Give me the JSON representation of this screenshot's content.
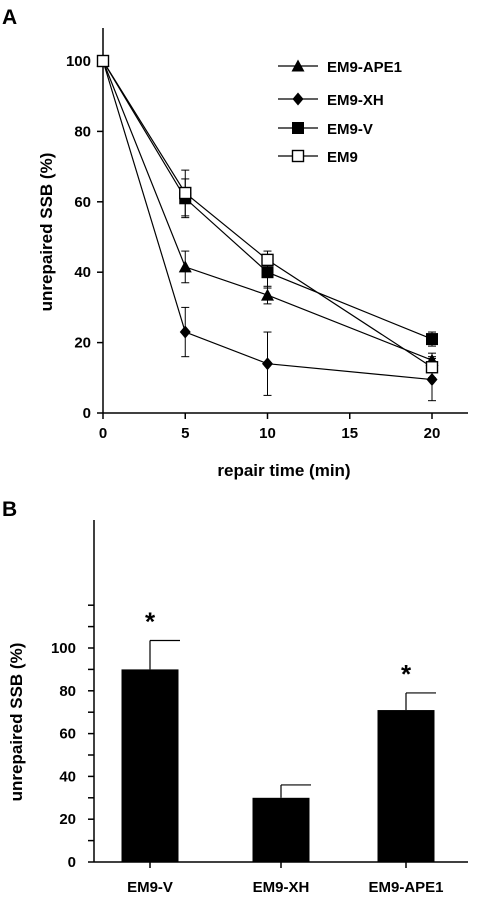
{
  "chart_data": [
    {
      "type": "line",
      "panel_label": "A",
      "xlabel": "repair time (min)",
      "ylabel": "unrepaired SSB (%)",
      "xlim": [
        0,
        22
      ],
      "ylim": [
        0,
        110
      ],
      "xticks": [
        0,
        5,
        10,
        15,
        20
      ],
      "yticks": [
        0,
        20,
        40,
        60,
        80,
        100
      ],
      "grid": false,
      "legend_position": "top-right",
      "x": [
        0,
        5,
        10,
        20
      ],
      "series": [
        {
          "name": "EM9-APE1",
          "marker": "filled-triangle",
          "values": [
            100,
            41.5,
            33.5,
            15
          ],
          "errors": [
            0,
            4.5,
            2.5,
            2
          ]
        },
        {
          "name": "EM9-XH",
          "marker": "filled-diamond",
          "values": [
            100,
            23,
            14,
            9.5
          ],
          "errors": [
            0,
            7,
            9,
            6
          ]
        },
        {
          "name": "EM9-V",
          "marker": "filled-square",
          "values": [
            100,
            61,
            40,
            21
          ],
          "errors": [
            0,
            5.5,
            4.5,
            2
          ]
        },
        {
          "name": "EM9",
          "marker": "open-square",
          "values": [
            100,
            62.5,
            43.5,
            13
          ],
          "errors": [
            0,
            6.5,
            2.5,
            3
          ]
        }
      ]
    },
    {
      "type": "bar",
      "panel_label": "B",
      "xlabel": "",
      "ylabel": "unrepaired SSB (%)",
      "ylim": [
        0,
        125
      ],
      "yticks": [
        0,
        20,
        40,
        60,
        80,
        100
      ],
      "grid": false,
      "categories": [
        "EM9-V",
        "EM9-XH",
        "EM9-APE1"
      ],
      "values": [
        90,
        30,
        71
      ],
      "errors": [
        13.5,
        6,
        8
      ],
      "significance": [
        "*",
        "",
        "*"
      ],
      "bar_color": "#000000"
    }
  ]
}
